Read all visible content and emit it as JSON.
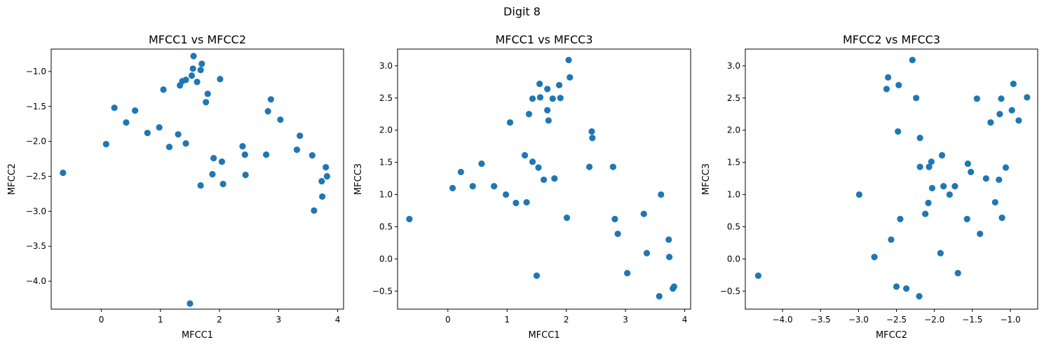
{
  "figure": {
    "title": "Digit 8"
  },
  "colors": {
    "marker": "#1f77b4",
    "axis": "#000000",
    "background": "#ffffff"
  },
  "chart_data": [
    {
      "type": "scatter",
      "title": "MFCC1 vs MFCC2",
      "xlabel": "MFCC1",
      "ylabel": "MFCC2",
      "xlim": [
        -0.85,
        4.1
      ],
      "ylim": [
        -4.4,
        -0.68
      ],
      "xticks": [
        0,
        1,
        2,
        3,
        4
      ],
      "xtick_labels": [
        "0",
        "1",
        "2",
        "3",
        "4"
      ],
      "yticks": [
        -4.0,
        -3.5,
        -3.0,
        -2.5,
        -2.0,
        -1.5,
        -1.0
      ],
      "ytick_labels": [
        "−4.0",
        "−3.5",
        "−3.0",
        "−2.5",
        "−2.0",
        "−1.5",
        "−1.0"
      ],
      "grid": false,
      "points": [
        [
          -0.65,
          -2.45
        ],
        [
          0.08,
          -2.04
        ],
        [
          0.22,
          -1.52
        ],
        [
          0.42,
          -1.73
        ],
        [
          0.57,
          -1.56
        ],
        [
          0.78,
          -1.88
        ],
        [
          0.98,
          -1.8
        ],
        [
          1.05,
          -1.26
        ],
        [
          1.15,
          -2.08
        ],
        [
          1.3,
          -1.9
        ],
        [
          1.33,
          -1.2
        ],
        [
          1.37,
          -1.14
        ],
        [
          1.43,
          -1.12
        ],
        [
          1.43,
          -2.03
        ],
        [
          1.5,
          -4.32
        ],
        [
          1.53,
          -1.06
        ],
        [
          1.55,
          -0.96
        ],
        [
          1.56,
          -0.78
        ],
        [
          1.62,
          -1.15
        ],
        [
          1.68,
          -2.63
        ],
        [
          1.68,
          -0.98
        ],
        [
          1.7,
          -0.89
        ],
        [
          1.77,
          -1.44
        ],
        [
          1.8,
          -1.32
        ],
        [
          1.88,
          -2.47
        ],
        [
          1.9,
          -2.24
        ],
        [
          2.01,
          -1.11
        ],
        [
          2.04,
          -2.29
        ],
        [
          2.06,
          -2.61
        ],
        [
          2.39,
          -2.07
        ],
        [
          2.43,
          -2.19
        ],
        [
          2.44,
          -2.48
        ],
        [
          2.79,
          -2.19
        ],
        [
          2.82,
          -1.57
        ],
        [
          2.87,
          -1.4
        ],
        [
          3.03,
          -1.69
        ],
        [
          3.31,
          -2.12
        ],
        [
          3.36,
          -1.92
        ],
        [
          3.57,
          -2.2
        ],
        [
          3.6,
          -2.99
        ],
        [
          3.73,
          -2.57
        ],
        [
          3.74,
          -2.79
        ],
        [
          3.8,
          -2.37
        ],
        [
          3.82,
          -2.5
        ]
      ]
    },
    {
      "type": "scatter",
      "title": "MFCC1 vs MFCC3",
      "xlabel": "MFCC1",
      "ylabel": "MFCC3",
      "xlim": [
        -0.85,
        4.1
      ],
      "ylim": [
        -0.78,
        3.26
      ],
      "xticks": [
        0,
        1,
        2,
        3,
        4
      ],
      "xtick_labels": [
        "0",
        "1",
        "2",
        "3",
        "4"
      ],
      "yticks": [
        -0.5,
        0.0,
        0.5,
        1.0,
        1.5,
        2.0,
        2.5,
        3.0
      ],
      "ytick_labels": [
        "−0.5",
        "0.0",
        "0.5",
        "1.0",
        "1.5",
        "2.0",
        "2.5",
        "3.0"
      ],
      "grid": false,
      "points": [
        [
          -0.65,
          0.62
        ],
        [
          0.08,
          1.1
        ],
        [
          0.22,
          1.35
        ],
        [
          0.42,
          1.13
        ],
        [
          0.57,
          1.48
        ],
        [
          0.78,
          1.13
        ],
        [
          0.98,
          1.0
        ],
        [
          1.05,
          2.12
        ],
        [
          1.15,
          0.87
        ],
        [
          1.3,
          1.61
        ],
        [
          1.33,
          0.88
        ],
        [
          1.37,
          2.25
        ],
        [
          1.43,
          2.49
        ],
        [
          1.43,
          1.51
        ],
        [
          1.5,
          -0.26
        ],
        [
          1.53,
          1.42
        ],
        [
          1.55,
          2.72
        ],
        [
          1.56,
          2.51
        ],
        [
          1.62,
          1.23
        ],
        [
          1.68,
          2.64
        ],
        [
          1.68,
          2.31
        ],
        [
          1.7,
          2.15
        ],
        [
          1.77,
          2.49
        ],
        [
          1.8,
          1.25
        ],
        [
          1.88,
          2.7
        ],
        [
          1.9,
          2.5
        ],
        [
          2.01,
          0.64
        ],
        [
          2.04,
          3.09
        ],
        [
          2.06,
          2.82
        ],
        [
          2.39,
          1.43
        ],
        [
          2.43,
          1.98
        ],
        [
          2.44,
          1.88
        ],
        [
          2.79,
          1.43
        ],
        [
          2.82,
          0.62
        ],
        [
          2.87,
          0.39
        ],
        [
          3.03,
          -0.22
        ],
        [
          3.31,
          0.7
        ],
        [
          3.36,
          0.09
        ],
        [
          3.57,
          -0.58
        ],
        [
          3.6,
          1.0
        ],
        [
          3.73,
          0.3
        ],
        [
          3.74,
          0.03
        ],
        [
          3.8,
          -0.46
        ],
        [
          3.82,
          -0.43
        ]
      ]
    },
    {
      "type": "scatter",
      "title": "MFCC2 vs MFCC3",
      "xlabel": "MFCC2",
      "ylabel": "MFCC3",
      "xlim": [
        -4.49,
        -0.64
      ],
      "ylim": [
        -0.78,
        3.26
      ],
      "xticks": [
        -4.0,
        -3.5,
        -3.0,
        -2.5,
        -2.0,
        -1.5,
        -1.0
      ],
      "xtick_labels": [
        "−4.0",
        "−3.5",
        "−3.0",
        "−2.5",
        "−2.0",
        "−1.5",
        "−1.0"
      ],
      "yticks": [
        -0.5,
        0.0,
        0.5,
        1.0,
        1.5,
        2.0,
        2.5,
        3.0
      ],
      "ytick_labels": [
        "−0.5",
        "0.0",
        "0.5",
        "1.0",
        "1.5",
        "2.0",
        "2.5",
        "3.0"
      ],
      "grid": false,
      "points": [
        [
          -4.32,
          -0.26
        ],
        [
          -2.99,
          1.0
        ],
        [
          -2.79,
          0.03
        ],
        [
          -2.63,
          2.64
        ],
        [
          -2.61,
          2.82
        ],
        [
          -2.57,
          0.3
        ],
        [
          -2.5,
          -0.43
        ],
        [
          -2.48,
          1.98
        ],
        [
          -2.47,
          2.7
        ],
        [
          -2.45,
          0.62
        ],
        [
          -2.37,
          -0.46
        ],
        [
          -2.29,
          3.09
        ],
        [
          -2.24,
          2.5
        ],
        [
          -2.2,
          -0.58
        ],
        [
          -2.19,
          1.88
        ],
        [
          -2.19,
          1.43
        ],
        [
          -2.12,
          0.7
        ],
        [
          -2.08,
          0.87
        ],
        [
          -2.07,
          1.43
        ],
        [
          -2.04,
          1.51
        ],
        [
          -2.03,
          1.1
        ],
        [
          -1.92,
          0.09
        ],
        [
          -1.9,
          1.61
        ],
        [
          -1.88,
          1.13
        ],
        [
          -1.8,
          1.0
        ],
        [
          -1.73,
          1.13
        ],
        [
          -1.69,
          -0.22
        ],
        [
          -1.57,
          0.62
        ],
        [
          -1.56,
          1.48
        ],
        [
          -1.52,
          1.35
        ],
        [
          -1.44,
          2.49
        ],
        [
          -1.4,
          0.39
        ],
        [
          -1.32,
          1.25
        ],
        [
          -1.26,
          2.12
        ],
        [
          -1.2,
          0.88
        ],
        [
          -1.15,
          1.23
        ],
        [
          -1.14,
          2.25
        ],
        [
          -1.12,
          2.49
        ],
        [
          -1.11,
          0.64
        ],
        [
          -1.06,
          1.42
        ],
        [
          -0.98,
          2.31
        ],
        [
          -0.96,
          2.72
        ],
        [
          -0.89,
          2.15
        ],
        [
          -0.78,
          2.51
        ]
      ]
    }
  ]
}
